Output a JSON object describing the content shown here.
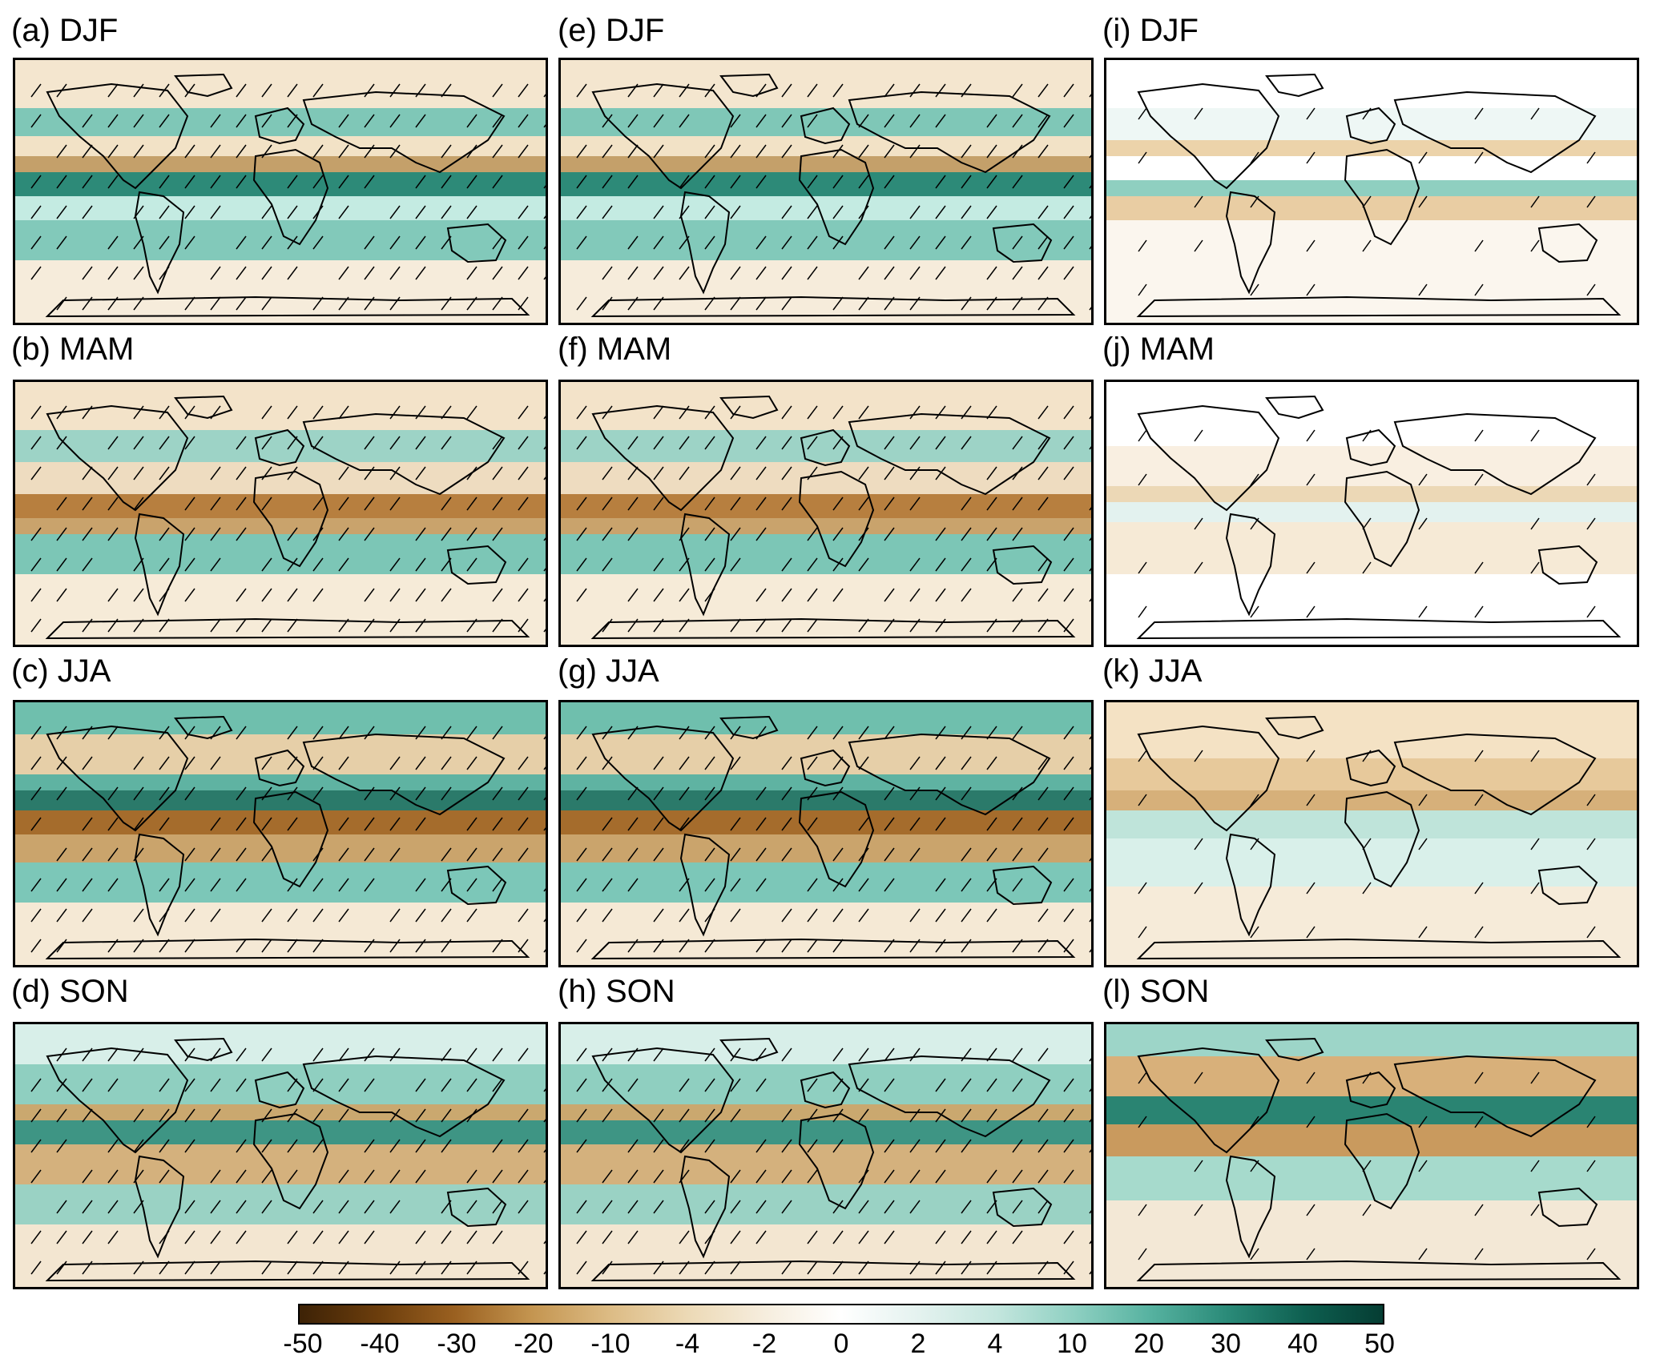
{
  "panels": [
    {
      "id": "a",
      "title": "(a) DJF",
      "season": "DJF"
    },
    {
      "id": "b",
      "title": "(b) MAM",
      "season": "MAM"
    },
    {
      "id": "c",
      "title": "(c) JJA",
      "season": "JJA"
    },
    {
      "id": "d",
      "title": "(d) SON",
      "season": "SON"
    },
    {
      "id": "e",
      "title": "(e) DJF",
      "season": "DJF"
    },
    {
      "id": "f",
      "title": "(f) MAM",
      "season": "MAM"
    },
    {
      "id": "g",
      "title": "(g) JJA",
      "season": "JJA"
    },
    {
      "id": "h",
      "title": "(h) SON",
      "season": "SON"
    },
    {
      "id": "i",
      "title": "(i) DJF",
      "season": "DJF"
    },
    {
      "id": "j",
      "title": "(j) MAM",
      "season": "MAM"
    },
    {
      "id": "k",
      "title": "(k) JJA",
      "season": "JJA"
    },
    {
      "id": "l",
      "title": "(l) SON",
      "season": "SON"
    }
  ],
  "colorbar": {
    "tick_labels": [
      "-50",
      "-40",
      "-30",
      "-20",
      "-10",
      "-4",
      "-2",
      "0",
      "2",
      "4",
      "10",
      "20",
      "30",
      "40",
      "50"
    ],
    "colors": [
      "#3d2206",
      "#6b3d0c",
      "#9a6020",
      "#c49550",
      "#dcbb84",
      "#ecd9b5",
      "#f6eddd",
      "#ffffff",
      "#e4f2ef",
      "#c4e6de",
      "#8fd0c2",
      "#56b2a0",
      "#2a8a78",
      "#0e5f50",
      "#053d33"
    ]
  },
  "palette": {
    "background": "#f7efe0",
    "land_dry": "#b07a3a",
    "ocean_wet": "#5fb8a6",
    "strong_dry": "#6b3d0c",
    "strong_wet": "#0e5f50",
    "coastline": "#000000",
    "hatch": "#000000"
  }
}
